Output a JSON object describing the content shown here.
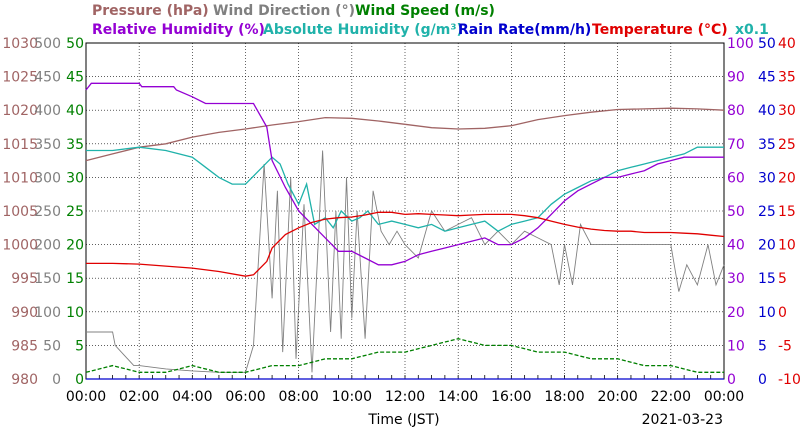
{
  "chart_data": {
    "type": "line",
    "date": "2021-03-23",
    "xlabel": "Time (JST)",
    "x_ticks": [
      "00:00",
      "02:00",
      "04:00",
      "06:00",
      "08:00",
      "10:00",
      "12:00",
      "14:00",
      "16:00",
      "18:00",
      "20:00",
      "22:00",
      "00:00"
    ],
    "xlim": [
      0,
      24
    ],
    "grid": true,
    "legend_rows": [
      [
        {
          "text": "Pressure (hPa)",
          "color": "#a06464"
        },
        {
          "text": "Wind Direction (°)",
          "color": "#808080"
        },
        {
          "text": "Wind Speed (m/s)",
          "color": "#008000"
        }
      ],
      [
        {
          "text": "Relative Humidity (%)",
          "color": "#9400d3"
        },
        {
          "text": "Absolute Humidity (g/m³)",
          "color": "#20b2aa"
        },
        {
          "text": "Rain Rate(mm/h)",
          "color": "#0000cd"
        },
        {
          "text": "Temperature (°C)",
          "color": "#e00000"
        },
        {
          "text": "x0.1",
          "color": "#20b2aa"
        }
      ]
    ],
    "axes": {
      "pressure": {
        "color": "#a06464",
        "ylim": [
          980,
          1030
        ],
        "ticks": [
          "1030",
          "1025",
          "1020",
          "1015",
          "1010",
          "1005",
          "1000",
          "995",
          "990",
          "985",
          "980"
        ]
      },
      "wind_direction": {
        "color": "#808080",
        "ylim": [
          0,
          500
        ],
        "ticks": [
          "500",
          "450",
          "400",
          "350",
          "300",
          "250",
          "200",
          "150",
          "100",
          "50",
          "0"
        ]
      },
      "wind_speed": {
        "color": "#008000",
        "ylim": [
          0,
          50
        ],
        "ticks": [
          "50",
          "45",
          "40",
          "35",
          "30",
          "25",
          "20",
          "15",
          "10",
          "5",
          "0"
        ]
      },
      "relative_humidity": {
        "color": "#9400d3",
        "ylim": [
          0,
          100
        ],
        "ticks": [
          "100",
          "90",
          "80",
          "70",
          "60",
          "50",
          "40",
          "30",
          "20",
          "10",
          "0"
        ]
      },
      "rain_rate": {
        "color": "#0000cd",
        "ylim": [
          0,
          50
        ],
        "ticks": [
          "50",
          "45",
          "40",
          "35",
          "30",
          "25",
          "20",
          "15",
          "10",
          "5",
          "0"
        ]
      },
      "temperature": {
        "color": "#e00000",
        "ylim": [
          -10,
          40
        ],
        "ticks": [
          "40",
          "35",
          "30",
          "25",
          "20",
          "15",
          "10",
          "5",
          "0",
          "-5",
          "-10"
        ]
      }
    },
    "series": [
      {
        "key": "pressure",
        "name": "Pressure (hPa)",
        "color": "#a06464",
        "axis": "pressure",
        "x": [
          0,
          1,
          2,
          3,
          4,
          5,
          6,
          7,
          8,
          9,
          10,
          11,
          12,
          13,
          14,
          15,
          16,
          17,
          18,
          19,
          20,
          21,
          22,
          23,
          24
        ],
        "values": [
          1012.5,
          1013.5,
          1014.5,
          1015,
          1016,
          1016.7,
          1017.2,
          1017.8,
          1018.3,
          1018.9,
          1018.8,
          1018.4,
          1017.9,
          1017.4,
          1017.2,
          1017.3,
          1017.7,
          1018.6,
          1019.2,
          1019.7,
          1020.1,
          1020.2,
          1020.3,
          1020.2,
          1020.0
        ]
      },
      {
        "key": "wind_direction",
        "name": "Wind Direction (°)",
        "color": "#808080",
        "axis": "wind_direction",
        "x": [
          0,
          1,
          1.1,
          1.8,
          2,
          3,
          4,
          5,
          6,
          6.3,
          6.7,
          7.0,
          7.2,
          7.4,
          7.7,
          7.9,
          8.2,
          8.5,
          8.9,
          9.2,
          9.4,
          9.6,
          9.8,
          10.0,
          10.2,
          10.5,
          10.8,
          11.1,
          11.4,
          11.7,
          12,
          12.5,
          13,
          13.5,
          14,
          14.5,
          15,
          15.5,
          16,
          16.5,
          17,
          17.5,
          17.8,
          18,
          18.3,
          18.6,
          19,
          19.5,
          20,
          20.5,
          21,
          21.5,
          22,
          22.3,
          22.6,
          23,
          23.4,
          23.7,
          24
        ],
        "values": [
          70,
          70,
          50,
          20,
          20,
          15,
          12,
          10,
          10,
          50,
          320,
          120,
          280,
          40,
          300,
          30,
          260,
          10,
          340,
          70,
          250,
          60,
          300,
          90,
          250,
          60,
          280,
          220,
          200,
          220,
          200,
          180,
          250,
          220,
          230,
          240,
          200,
          220,
          200,
          220,
          210,
          200,
          140,
          200,
          140,
          230,
          200,
          200,
          200,
          200,
          200,
          200,
          200,
          130,
          170,
          140,
          200,
          140,
          170
        ]
      },
      {
        "key": "wind_speed",
        "name": "Wind Speed (m/s)",
        "color": "#008000",
        "axis": "wind_speed",
        "x": [
          0,
          1,
          2,
          3,
          4,
          5,
          6,
          7,
          8,
          9,
          10,
          11,
          12,
          13,
          14,
          15,
          16,
          17,
          18,
          19,
          20,
          21,
          22,
          23,
          24
        ],
        "values": [
          1,
          2,
          1,
          1,
          2,
          1,
          1,
          2,
          2,
          3,
          3,
          4,
          4,
          5,
          6,
          5,
          5,
          4,
          4,
          3,
          3,
          2,
          2,
          1,
          1
        ]
      },
      {
        "key": "relative_humidity",
        "name": "Relative Humidity (%)",
        "color": "#9400d3",
        "axis": "relative_humidity",
        "x": [
          0,
          0.2,
          2,
          2.1,
          3.3,
          3.4,
          4,
          4.5,
          6.3,
          6.8,
          7.0,
          7.5,
          8,
          8.5,
          9,
          9.5,
          10,
          10.5,
          11,
          11.5,
          12,
          12.5,
          13,
          13.5,
          14,
          14.5,
          15,
          15.5,
          16,
          16.5,
          17,
          17.5,
          18,
          18.5,
          19,
          19.5,
          20,
          20.5,
          21,
          21.5,
          22,
          22.5,
          23,
          23.5,
          24
        ],
        "values": [
          86,
          88,
          88,
          87,
          87,
          86,
          84,
          82,
          82,
          75,
          65,
          57,
          50,
          46,
          42,
          38,
          38,
          36,
          34,
          34,
          35,
          37,
          38,
          39,
          40,
          41,
          42,
          40,
          40,
          42,
          45,
          49,
          53,
          56,
          58,
          60,
          60,
          61,
          62,
          64,
          65,
          66,
          66,
          66,
          66
        ]
      },
      {
        "key": "absolute_humidity",
        "name": "Absolute Humidity (g/m³)",
        "color": "#20b2aa",
        "axis": "relative_humidity",
        "x": [
          0,
          1,
          2,
          3,
          4,
          4.5,
          5,
          5.5,
          6,
          6.5,
          7,
          7.3,
          7.6,
          8,
          8.3,
          8.6,
          9,
          9.3,
          9.6,
          10,
          10.3,
          10.6,
          11,
          11.5,
          12,
          12.5,
          13,
          13.5,
          14,
          14.5,
          15,
          15.5,
          16,
          16.5,
          17,
          17.5,
          18,
          18.5,
          19,
          19.5,
          20,
          20.5,
          21,
          21.5,
          22,
          22.5,
          23,
          23.5,
          24
        ],
        "values": [
          68,
          68,
          69,
          68,
          66,
          63,
          60,
          58,
          58,
          62,
          66,
          64,
          58,
          52,
          58,
          46,
          48,
          45,
          50,
          47,
          48,
          50,
          46,
          47,
          46,
          45,
          46,
          44,
          45,
          46,
          47,
          44,
          46,
          47,
          48,
          52,
          55,
          57,
          59,
          60,
          62,
          63,
          64,
          65,
          66,
          67,
          69,
          69,
          69
        ]
      },
      {
        "key": "rain_rate",
        "name": "Rain Rate(mm/h)",
        "color": "#0000cd",
        "axis": "rain_rate",
        "x": [
          0,
          24
        ],
        "values": [
          0,
          0
        ]
      },
      {
        "key": "temperature",
        "name": "Temperature (°C)",
        "color": "#e00000",
        "axis": "temperature",
        "x": [
          0,
          1,
          2,
          3,
          4,
          5,
          6,
          6.3,
          6.8,
          7,
          7.5,
          8,
          8.5,
          9,
          9.5,
          10,
          10.5,
          11,
          11.5,
          12,
          12.5,
          13,
          13.5,
          14,
          14.5,
          15,
          15.5,
          16,
          16.5,
          17,
          17.5,
          18,
          18.5,
          19,
          19.5,
          20,
          20.5,
          21,
          21.5,
          22,
          22.5,
          23,
          23.5,
          24
        ],
        "values": [
          7.2,
          7.2,
          7.1,
          6.8,
          6.5,
          6.0,
          5.3,
          5.5,
          7.5,
          9.5,
          11.5,
          12.5,
          13.3,
          13.8,
          14.0,
          14.1,
          14.4,
          14.8,
          14.8,
          14.5,
          14.6,
          14.5,
          14.4,
          14.3,
          14.4,
          14.5,
          14.5,
          14.5,
          14.3,
          14.0,
          13.5,
          13.0,
          12.6,
          12.3,
          12.1,
          12.0,
          12.0,
          11.8,
          11.8,
          11.8,
          11.7,
          11.6,
          11.4,
          11.2
        ]
      }
    ]
  }
}
